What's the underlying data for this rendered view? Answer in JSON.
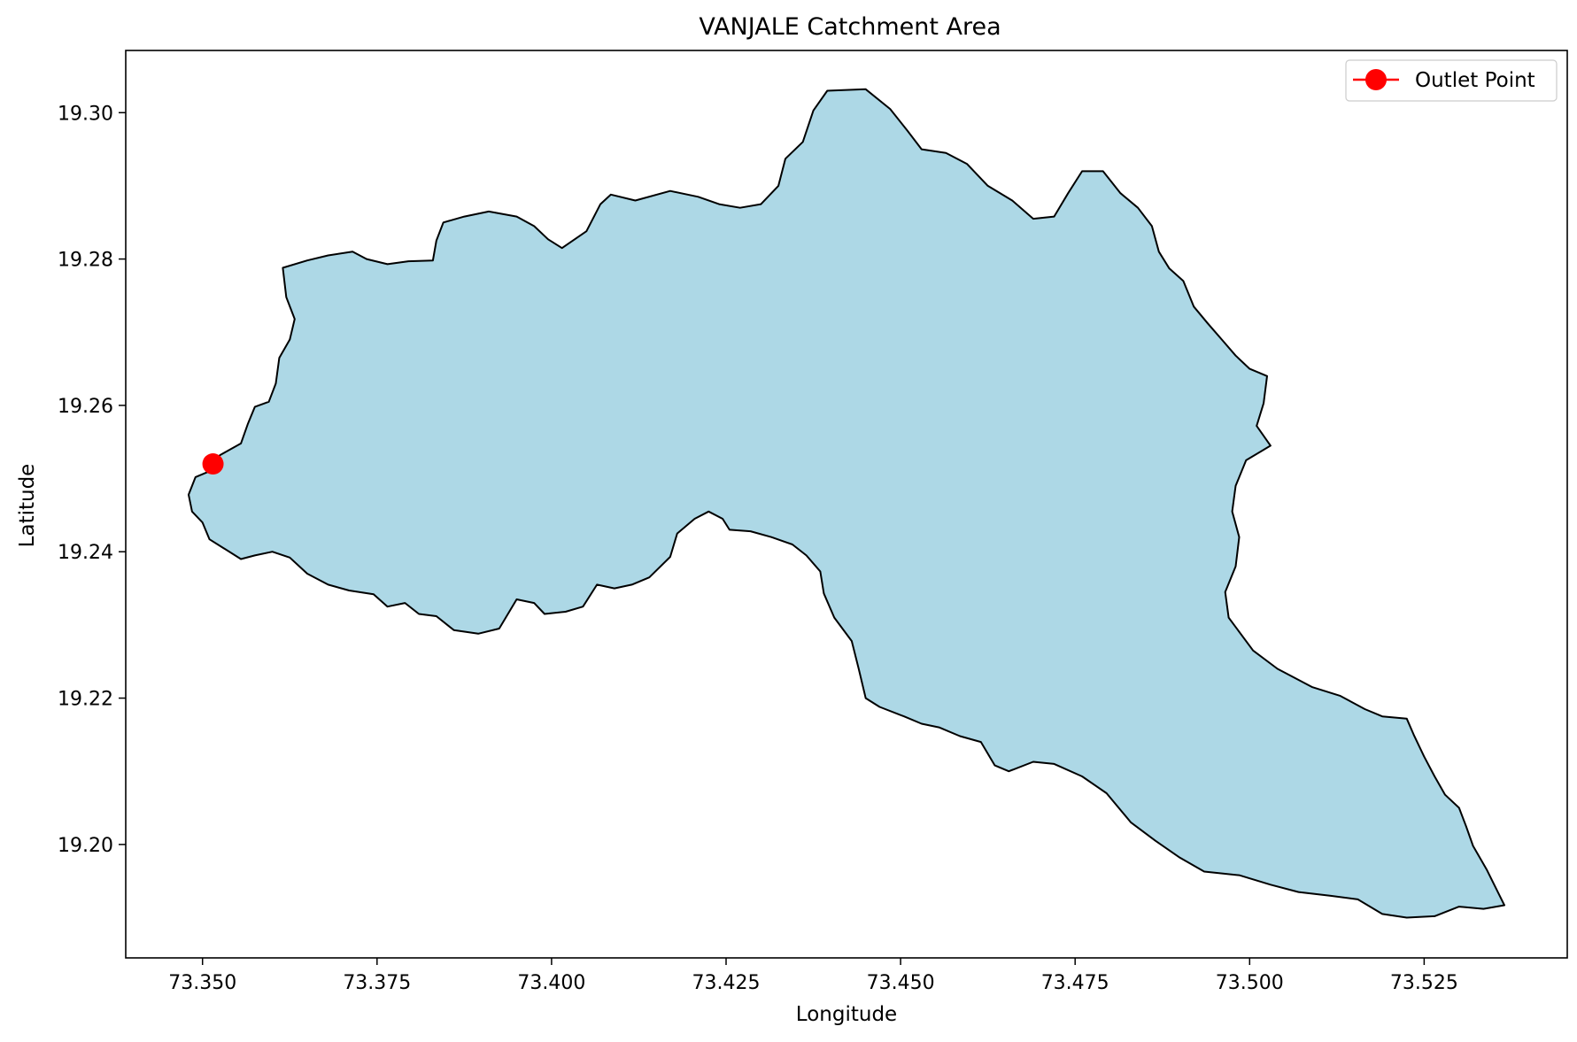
{
  "chart_data": {
    "type": "map",
    "title": "VANJALE Catchment Area",
    "xlabel": "Longitude",
    "ylabel": "Latitude",
    "xlim": [
      73.339,
      73.5455
    ],
    "ylim": [
      19.1845,
      19.3085
    ],
    "x_ticks": [
      73.35,
      73.375,
      73.4,
      73.425,
      73.45,
      73.475,
      73.5,
      73.525
    ],
    "x_tick_labels": [
      "73.350",
      "73.375",
      "73.400",
      "73.425",
      "73.450",
      "73.475",
      "73.500",
      "73.525"
    ],
    "y_ticks": [
      19.2,
      19.22,
      19.24,
      19.26,
      19.28,
      19.3
    ],
    "y_tick_labels": [
      "19.20",
      "19.22",
      "19.24",
      "19.26",
      "19.28",
      "19.30"
    ],
    "grid": false,
    "legend": {
      "placement": "top-right",
      "entries": [
        {
          "label": "Outlet Point",
          "color": "#ff0000",
          "marker": "circle-line"
        }
      ]
    },
    "catchment": {
      "fill": "#add8e6",
      "edge": "#000000",
      "boundary": [
        [
          73.348,
          19.2478
        ],
        [
          73.349,
          19.2502
        ],
        [
          73.351,
          19.251
        ],
        [
          73.3525,
          19.2532
        ],
        [
          73.3555,
          19.2548
        ],
        [
          73.3565,
          19.2575
        ],
        [
          73.3575,
          19.2598
        ],
        [
          73.3595,
          19.2605
        ],
        [
          73.3605,
          19.263
        ],
        [
          73.361,
          19.2665
        ],
        [
          73.3625,
          19.269
        ],
        [
          73.3632,
          19.2718
        ],
        [
          73.362,
          19.2748
        ],
        [
          73.3615,
          19.2788
        ],
        [
          73.365,
          19.2798
        ],
        [
          73.368,
          19.2805
        ],
        [
          73.3715,
          19.281
        ],
        [
          73.3735,
          19.28
        ],
        [
          73.3765,
          19.2793
        ],
        [
          73.3795,
          19.2797
        ],
        [
          73.383,
          19.2798
        ],
        [
          73.3835,
          19.2825
        ],
        [
          73.3845,
          19.285
        ],
        [
          73.3875,
          19.2858
        ],
        [
          73.391,
          19.2865
        ],
        [
          73.395,
          19.2858
        ],
        [
          73.3975,
          19.2845
        ],
        [
          73.3995,
          19.2827
        ],
        [
          73.4015,
          19.2815
        ],
        [
          73.405,
          19.2838
        ],
        [
          73.407,
          19.2875
        ],
        [
          73.4085,
          19.2888
        ],
        [
          73.412,
          19.288
        ],
        [
          73.417,
          19.2893
        ],
        [
          73.421,
          19.2885
        ],
        [
          73.424,
          19.2875
        ],
        [
          73.427,
          19.287
        ],
        [
          73.43,
          19.2875
        ],
        [
          73.4325,
          19.29
        ],
        [
          73.4335,
          19.2937
        ],
        [
          73.436,
          19.296
        ],
        [
          73.4375,
          19.3003
        ],
        [
          73.4395,
          19.303
        ],
        [
          73.445,
          19.3032
        ],
        [
          73.4485,
          19.3005
        ],
        [
          73.451,
          19.2975
        ],
        [
          73.453,
          19.295
        ],
        [
          73.4565,
          19.2945
        ],
        [
          73.4595,
          19.293
        ],
        [
          73.4625,
          19.29
        ],
        [
          73.466,
          19.288
        ],
        [
          73.469,
          19.2855
        ],
        [
          73.472,
          19.2858
        ],
        [
          73.474,
          19.289
        ],
        [
          73.476,
          19.292
        ],
        [
          73.479,
          19.292
        ],
        [
          73.4815,
          19.289
        ],
        [
          73.484,
          19.287
        ],
        [
          73.486,
          19.2845
        ],
        [
          73.487,
          19.281
        ],
        [
          73.4885,
          19.2787
        ],
        [
          73.4905,
          19.277
        ],
        [
          73.492,
          19.2735
        ],
        [
          73.494,
          19.2712
        ],
        [
          73.496,
          19.269
        ],
        [
          73.498,
          19.2668
        ],
        [
          73.5,
          19.265
        ],
        [
          73.5025,
          19.264
        ],
        [
          73.502,
          19.2603
        ],
        [
          73.501,
          19.2572
        ],
        [
          73.503,
          19.2545
        ],
        [
          73.4995,
          19.2525
        ],
        [
          73.498,
          19.249
        ],
        [
          73.4975,
          19.2455
        ],
        [
          73.4985,
          19.242
        ],
        [
          73.498,
          19.238
        ],
        [
          73.4965,
          19.2345
        ],
        [
          73.497,
          19.231
        ],
        [
          73.5005,
          19.2265
        ],
        [
          73.504,
          19.224
        ],
        [
          73.509,
          19.2215
        ],
        [
          73.513,
          19.2203
        ],
        [
          73.5165,
          19.2185
        ],
        [
          73.519,
          19.2175
        ],
        [
          73.5225,
          19.2172
        ],
        [
          73.5235,
          19.215
        ],
        [
          73.525,
          19.212
        ],
        [
          73.5265,
          19.2093
        ],
        [
          73.528,
          19.2068
        ],
        [
          73.53,
          19.205
        ],
        [
          73.531,
          19.2025
        ],
        [
          73.532,
          19.1998
        ],
        [
          73.534,
          19.1965
        ],
        [
          73.5365,
          19.1917
        ],
        [
          73.5335,
          19.1912
        ],
        [
          73.53,
          19.1915
        ],
        [
          73.5265,
          19.1902
        ],
        [
          73.5225,
          19.19
        ],
        [
          73.519,
          19.1905
        ],
        [
          73.5155,
          19.1925
        ],
        [
          73.5115,
          19.193
        ],
        [
          73.507,
          19.1935
        ],
        [
          73.503,
          19.1945
        ],
        [
          73.4985,
          19.1958
        ],
        [
          73.4935,
          19.1963
        ],
        [
          73.49,
          19.1982
        ],
        [
          73.4865,
          19.2005
        ],
        [
          73.483,
          19.203
        ],
        [
          73.4795,
          19.207
        ],
        [
          73.476,
          19.2093
        ],
        [
          73.472,
          19.211
        ],
        [
          73.469,
          19.2113
        ],
        [
          73.4655,
          19.21
        ],
        [
          73.4635,
          19.2108
        ],
        [
          73.4615,
          19.214
        ],
        [
          73.4585,
          19.2148
        ],
        [
          73.4555,
          19.216
        ],
        [
          73.453,
          19.2165
        ],
        [
          73.4505,
          19.2175
        ],
        [
          73.447,
          19.2188
        ],
        [
          73.445,
          19.22
        ],
        [
          73.444,
          19.224
        ],
        [
          73.443,
          19.2278
        ],
        [
          73.4405,
          19.231
        ],
        [
          73.439,
          19.2343
        ],
        [
          73.4385,
          19.2373
        ],
        [
          73.4365,
          19.2395
        ],
        [
          73.4345,
          19.241
        ],
        [
          73.4315,
          19.242
        ],
        [
          73.4285,
          19.2428
        ],
        [
          73.4255,
          19.243
        ],
        [
          73.4245,
          19.2445
        ],
        [
          73.4225,
          19.2455
        ],
        [
          73.4205,
          19.2445
        ],
        [
          73.418,
          19.2425
        ],
        [
          73.417,
          19.2393
        ],
        [
          73.414,
          19.2365
        ],
        [
          73.4115,
          19.2355
        ],
        [
          73.409,
          19.235
        ],
        [
          73.4065,
          19.2355
        ],
        [
          73.4045,
          19.2325
        ],
        [
          73.402,
          19.2318
        ],
        [
          73.399,
          19.2315
        ],
        [
          73.3975,
          19.233
        ],
        [
          73.395,
          19.2335
        ],
        [
          73.3925,
          19.2295
        ],
        [
          73.3895,
          19.2288
        ],
        [
          73.386,
          19.2293
        ],
        [
          73.3835,
          19.2312
        ],
        [
          73.381,
          19.2315
        ],
        [
          73.379,
          19.233
        ],
        [
          73.3765,
          19.2325
        ],
        [
          73.3745,
          19.2342
        ],
        [
          73.371,
          19.2347
        ],
        [
          73.368,
          19.2355
        ],
        [
          73.365,
          19.237
        ],
        [
          73.3625,
          19.2392
        ],
        [
          73.36,
          19.24
        ],
        [
          73.3575,
          19.2395
        ],
        [
          73.3555,
          19.239
        ],
        [
          73.353,
          19.2405
        ],
        [
          73.351,
          19.2417
        ],
        [
          73.35,
          19.244
        ],
        [
          73.3485,
          19.2455
        ]
      ]
    },
    "outlet_point": {
      "label": "Outlet Point",
      "lon": 73.3515,
      "lat": 19.252,
      "color": "#ff0000"
    }
  }
}
